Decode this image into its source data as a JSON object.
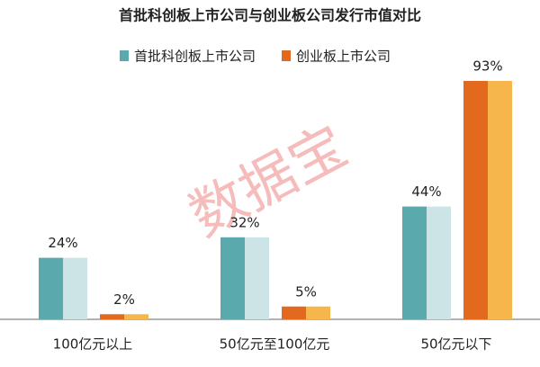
{
  "chart_data": {
    "type": "bar",
    "title": "首批科创板上市公司与创业板公司发行市值对比",
    "watermark": "数据宝",
    "categories": [
      "100亿元以上",
      "50亿元至100亿元",
      "50亿元以下"
    ],
    "series": [
      {
        "name": "首批科创板上市公司",
        "color": "#5aa9ad",
        "light_color": "#cde4e6",
        "values": [
          24,
          32,
          44
        ],
        "value_labels": [
          "24%",
          "32%",
          "44%"
        ]
      },
      {
        "name": "创业板上市公司",
        "color": "#e2691d",
        "light_color": "#f7b64b",
        "values": [
          2,
          5,
          93
        ],
        "value_labels": [
          "2%",
          "5%",
          "93%"
        ]
      }
    ]
  }
}
